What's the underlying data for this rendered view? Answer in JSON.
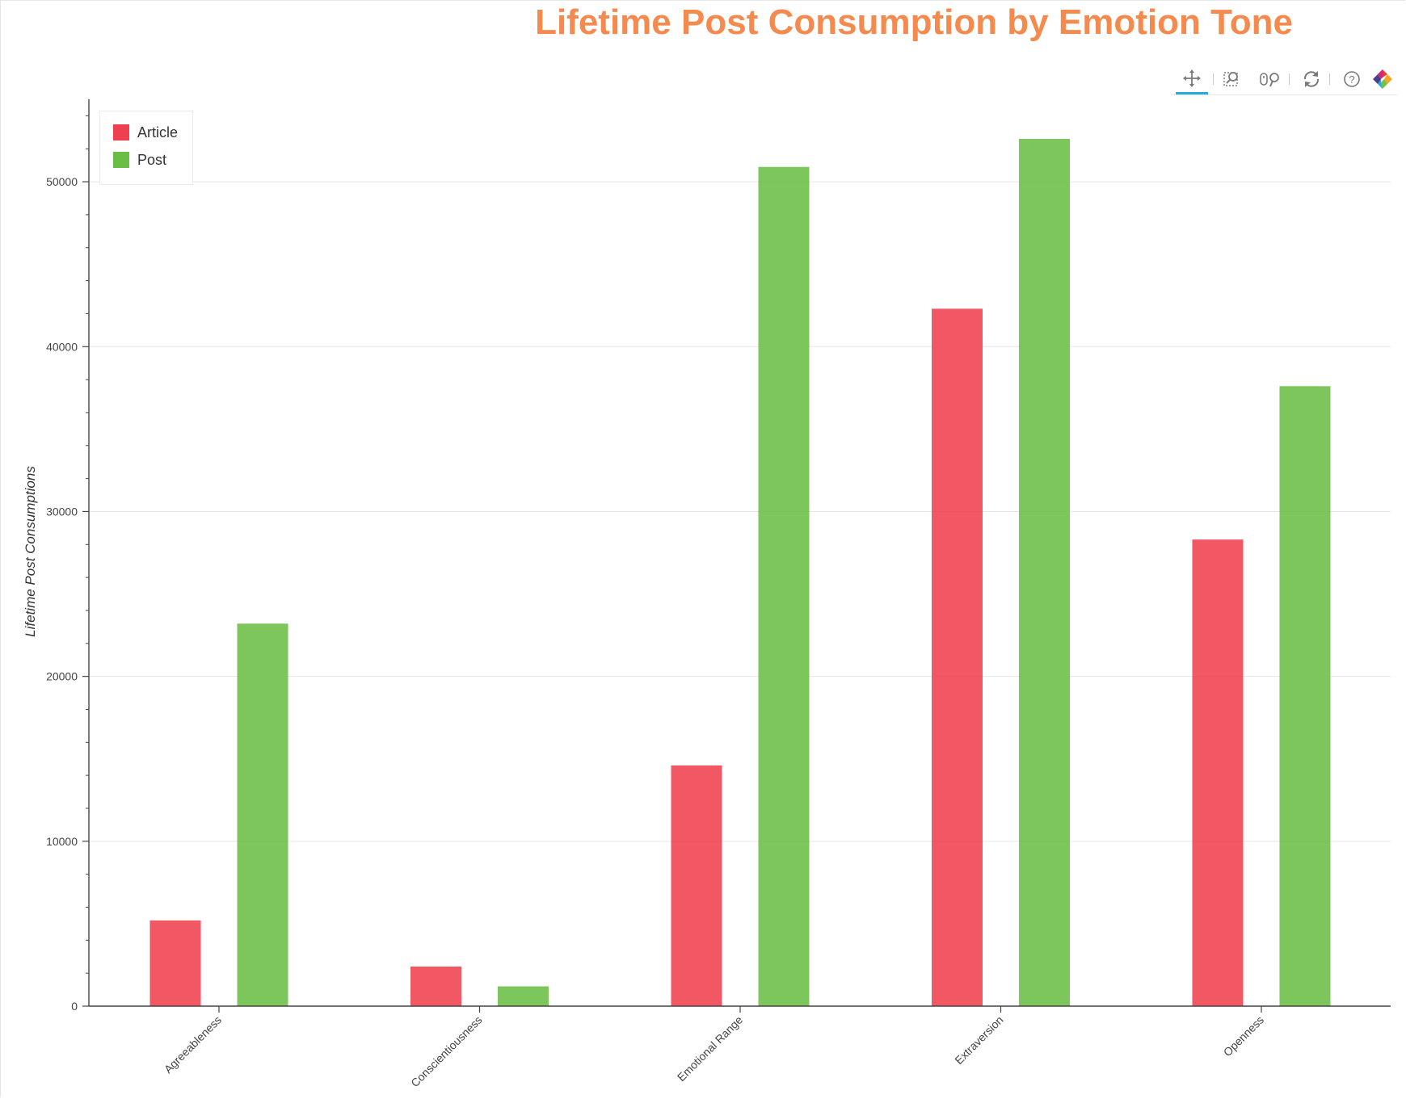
{
  "chart_data": {
    "type": "bar",
    "title": "Lifetime Post Consumption by Emotion Tone",
    "xlabel": "",
    "ylabel": "Lifetime Post Consumptions",
    "categories": [
      "Agreeableness",
      "Conscientiousness",
      "Emotional Range",
      "Extraversion",
      "Openness"
    ],
    "series": [
      {
        "name": "Article",
        "color": "#f0404f",
        "values": [
          5200,
          2400,
          14600,
          42300,
          28300
        ]
      },
      {
        "name": "Post",
        "color": "#6abe45",
        "values": [
          23200,
          1200,
          50900,
          52600,
          37600
        ]
      }
    ],
    "ylim": [
      0,
      55000
    ],
    "yticks": [
      0,
      10000,
      20000,
      30000,
      40000,
      50000
    ],
    "ytick_labels": [
      "0",
      "10000",
      "20000",
      "30000",
      "40000",
      "50000"
    ],
    "grid": true,
    "legend_position": "top-left",
    "colors": {
      "title": "#f58a4f",
      "grid": "#e6e6e6",
      "axis": "#444444",
      "toolbar_active": "#26aae1"
    }
  },
  "toolbar": {
    "tools": [
      {
        "name": "pan",
        "icon": "pan-icon",
        "active": true
      },
      {
        "name": "box-zoom",
        "icon": "box-zoom-icon",
        "active": false
      },
      {
        "name": "wheel-zoom",
        "icon": "wheel-zoom-icon",
        "active": false
      },
      {
        "name": "reset",
        "icon": "reset-icon",
        "active": false
      },
      {
        "name": "help",
        "icon": "help-icon",
        "active": false
      },
      {
        "name": "bokeh-logo",
        "icon": "bokeh-logo-icon",
        "active": false
      }
    ]
  }
}
